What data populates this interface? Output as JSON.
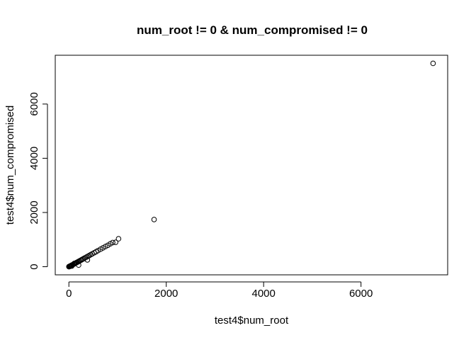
{
  "chart_data": {
    "type": "scatter",
    "title": "num_root != 0 & num_compromised != 0",
    "xlabel": "test4$num_root",
    "ylabel": "test4$num_compromised",
    "xlim": [
      -280,
      7780
    ],
    "ylim": [
      -300,
      7800
    ],
    "xticks": [
      0,
      2000,
      4000,
      6000
    ],
    "yticks": [
      0,
      2000,
      4000,
      6000
    ],
    "grid": false,
    "legend": "none",
    "marker": "open-circle",
    "colors": {
      "marker": "#000000",
      "frame": "#000000",
      "background": "#ffffff"
    },
    "points": [
      [
        1,
        1
      ],
      [
        3,
        2
      ],
      [
        5,
        5
      ],
      [
        8,
        6
      ],
      [
        12,
        10
      ],
      [
        18,
        15
      ],
      [
        25,
        22
      ],
      [
        32,
        30
      ],
      [
        40,
        38
      ],
      [
        50,
        48
      ],
      [
        60,
        58
      ],
      [
        70,
        66
      ],
      [
        85,
        80
      ],
      [
        100,
        95
      ],
      [
        115,
        110
      ],
      [
        130,
        125
      ],
      [
        150,
        145
      ],
      [
        165,
        160
      ],
      [
        185,
        180
      ],
      [
        200,
        195
      ],
      [
        220,
        215
      ],
      [
        240,
        235
      ],
      [
        260,
        255
      ],
      [
        280,
        275
      ],
      [
        300,
        295
      ],
      [
        330,
        325
      ],
      [
        360,
        355
      ],
      [
        390,
        385
      ],
      [
        420,
        415
      ],
      [
        450,
        445
      ],
      [
        480,
        475
      ],
      [
        520,
        515
      ],
      [
        560,
        555
      ],
      [
        600,
        595
      ],
      [
        650,
        645
      ],
      [
        700,
        695
      ],
      [
        750,
        745
      ],
      [
        800,
        790
      ],
      [
        850,
        845
      ],
      [
        900,
        890
      ],
      [
        960,
        900
      ],
      [
        1020,
        1030
      ],
      [
        200,
        60
      ],
      [
        380,
        250
      ],
      [
        110,
        120
      ],
      [
        60,
        25
      ],
      [
        1750,
        1740
      ],
      [
        7480,
        7500
      ]
    ]
  }
}
